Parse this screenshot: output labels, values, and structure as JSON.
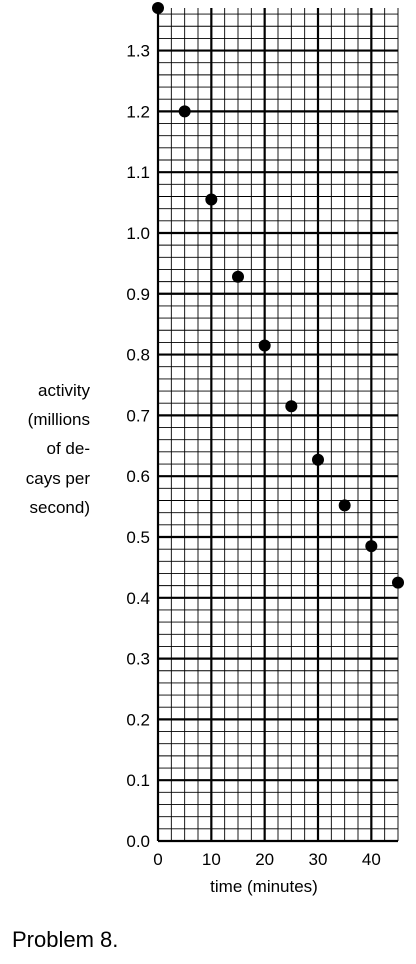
{
  "chart_data": {
    "type": "scatter",
    "ylabel_lines": [
      "activity",
      "(millions",
      "of de-",
      "cays per",
      "second)"
    ],
    "xlabel": "time (minutes)",
    "x_ticks": [
      "0",
      "10",
      "20",
      "30",
      "40"
    ],
    "y_ticks": [
      "0.0",
      "0.1",
      "0.2",
      "0.3",
      "0.4",
      "0.5",
      "0.6",
      "0.7",
      "0.8",
      "0.9",
      "1.0",
      "1.1",
      "1.2",
      "1.3"
    ],
    "xlim": [
      0,
      45
    ],
    "ylim": [
      0,
      1.37
    ],
    "x": [
      0,
      5,
      10,
      15,
      20,
      25,
      30,
      35,
      40,
      45
    ],
    "y": [
      1.37,
      1.2,
      1.055,
      0.928,
      0.815,
      0.715,
      0.627,
      0.552,
      0.485,
      0.425
    ],
    "grid": true
  },
  "caption": "Problem 8."
}
